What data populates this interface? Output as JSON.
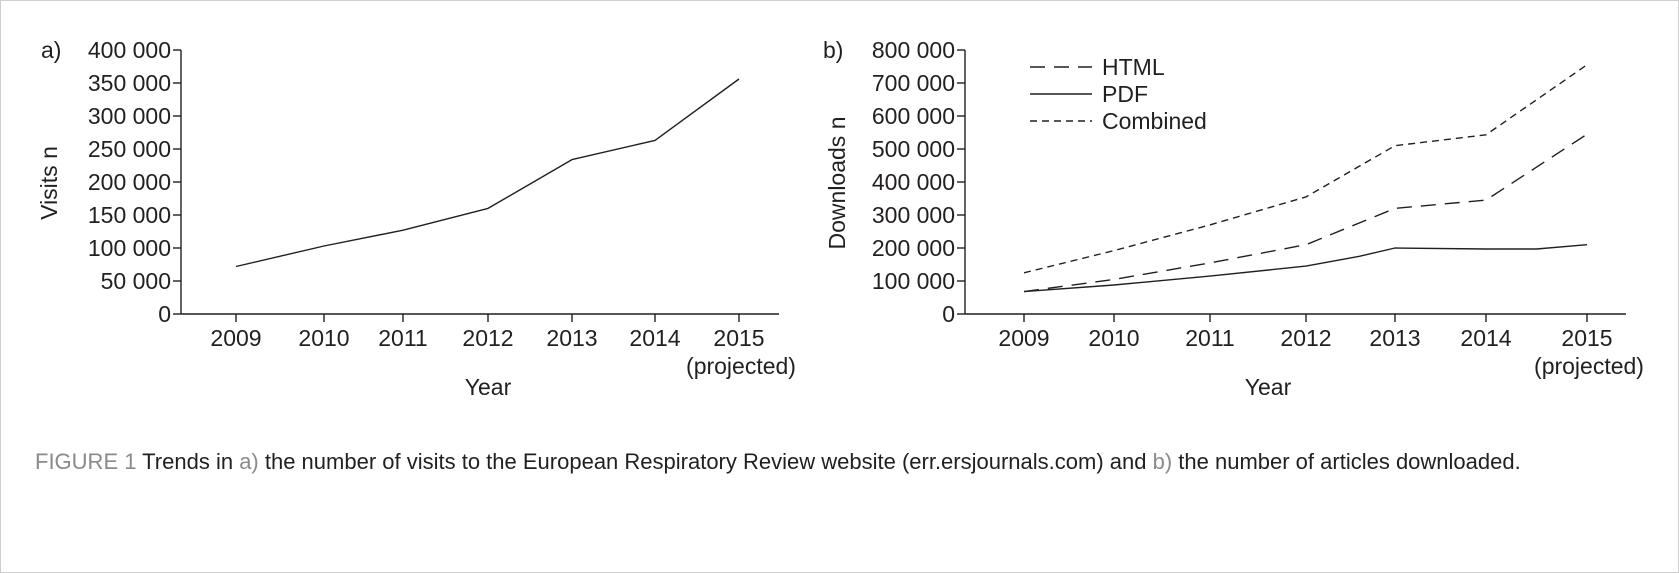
{
  "chart_data": [
    {
      "type": "line",
      "panel_label": "a)",
      "ylabel": "Visits n",
      "xlabel": "Year",
      "categories": [
        "2009",
        "2010",
        "2011",
        "2012",
        "2013",
        "2014",
        "2015"
      ],
      "category_note": {
        "index": 6,
        "text": "(projected)"
      },
      "ylim": [
        0,
        400000
      ],
      "yticks": [
        "0",
        "50 000",
        "100 000",
        "150 000",
        "200 000",
        "250 000",
        "300 000",
        "350 000",
        "400 000"
      ],
      "ytick_values": [
        0,
        50000,
        100000,
        150000,
        200000,
        250000,
        300000,
        350000,
        400000
      ],
      "x_positions": [
        2009,
        2010,
        2011,
        2012,
        2013,
        2014,
        2015
      ],
      "series": [
        {
          "style": "solid",
          "values": [
            72000,
            103000,
            127000,
            160000,
            234000,
            263000,
            356000
          ]
        }
      ],
      "legend": null,
      "grid": false
    },
    {
      "type": "line",
      "panel_label": "b)",
      "ylabel": "Downloads n",
      "xlabel": "Year",
      "categories": [
        "2009",
        "2010",
        "2011",
        "2012",
        "2013",
        "2014",
        "2015"
      ],
      "category_note": {
        "index": 6,
        "text": "(projected)"
      },
      "ylim": [
        0,
        800000
      ],
      "yticks": [
        "0",
        "100 000",
        "200 000",
        "300 000",
        "400 000",
        "500 000",
        "600 000",
        "700 000",
        "800 000"
      ],
      "ytick_values": [
        0,
        100000,
        200000,
        300000,
        400000,
        500000,
        600000,
        700000,
        800000
      ],
      "x_positions": [
        2009,
        2010,
        2011,
        2012,
        2013,
        2014,
        2015
      ],
      "series": [
        {
          "name": "HTML",
          "style": "dashed-long",
          "points": [
            [
              2009,
              68000
            ],
            [
              2010,
              105000
            ],
            [
              2011,
              155000
            ],
            [
              2012,
              210000
            ],
            [
              2013,
              320000
            ],
            [
              2014,
              345000
            ],
            [
              2015,
              545000
            ]
          ]
        },
        {
          "name": "PDF",
          "style": "solid",
          "points": [
            [
              2009,
              68000
            ],
            [
              2010,
              88000
            ],
            [
              2011,
              115000
            ],
            [
              2012,
              145000
            ],
            [
              2012.6,
              175000
            ],
            [
              2013,
              200000
            ],
            [
              2014,
              197000
            ],
            [
              2014.5,
              197000
            ],
            [
              2015,
              210000
            ]
          ]
        },
        {
          "name": "Combined",
          "style": "dashed-short",
          "points": [
            [
              2009,
              125000
            ],
            [
              2010,
              192000
            ],
            [
              2011,
              270000
            ],
            [
              2012,
              355000
            ],
            [
              2013,
              510000
            ],
            [
              2014,
              543000
            ],
            [
              2015,
              755000
            ]
          ]
        }
      ],
      "legend": "top-left",
      "grid": false
    }
  ],
  "caption": {
    "figure_label": "FIGURE 1",
    "part1": " Trends in ",
    "a_label": "a)",
    "part2": " the number of visits to the European Respiratory Review website (err.ersjournals.com) and ",
    "b_label": "b)",
    "part3": " the number of articles downloaded."
  }
}
